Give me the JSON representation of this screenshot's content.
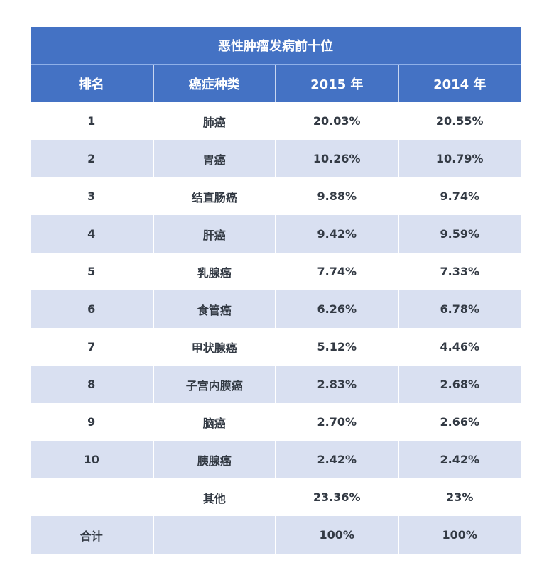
{
  "title": "恶性肿瘤发病前十位",
  "headers": [
    "排名",
    "癌症种类",
    "2015 年",
    "2014 年"
  ],
  "rows": [
    [
      "1",
      "肺癌",
      "20.03%",
      "20.55%"
    ],
    [
      "2",
      "胃癌",
      "10.26%",
      "10.79%"
    ],
    [
      "3",
      "结直肠癌",
      "9.88%",
      "9.74%"
    ],
    [
      "4",
      "肝癌",
      "9.42%",
      "9.59%"
    ],
    [
      "5",
      "乳腺癌",
      "7.74%",
      "7.33%"
    ],
    [
      "6",
      "食管癌",
      "6.26%",
      "6.78%"
    ],
    [
      "7",
      "甲状腺癌",
      "5.12%",
      "4.46%"
    ],
    [
      "8",
      "子宫内膜癌",
      "2.83%",
      "2.68%"
    ],
    [
      "9",
      "脑癌",
      "2.70%",
      "2.66%"
    ],
    [
      "10",
      "胰腺癌",
      "2.42%",
      "2.42%"
    ],
    [
      "",
      "其他",
      "23.36%",
      "23%"
    ],
    [
      "合计",
      "",
      "100%",
      "100%"
    ]
  ],
  "colors": {
    "header": "#4472c4",
    "stripe": "#d9e0f1",
    "text": "#333a44"
  }
}
